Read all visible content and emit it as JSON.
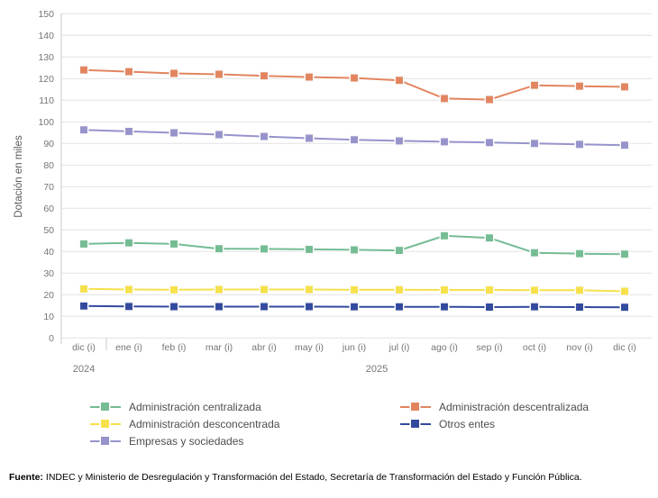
{
  "chart_data": {
    "type": "line",
    "categories": [
      "dic (i)",
      "ene (i)",
      "feb (i)",
      "mar (i)",
      "abr (i)",
      "may (i)",
      "jun (i)",
      "jul (i)",
      "ago (i)",
      "sep (i)",
      "oct (i)",
      "nov (i)",
      "dic (i)"
    ],
    "year_labels": [
      {
        "label": "2024",
        "at_index": 0
      },
      {
        "label": "2025",
        "at_index": 6.5
      }
    ],
    "series": [
      {
        "name": "Administración centralizada",
        "color": "#74BC93",
        "values": [
          43.5,
          44.0,
          43.5,
          41.3,
          41.2,
          41.0,
          40.8,
          40.5,
          47.3,
          46.3,
          39.4,
          39.0,
          38.8
        ]
      },
      {
        "name": "Administración descentralizada",
        "color": "#E2855F",
        "values": [
          124.0,
          123.2,
          122.4,
          122.0,
          121.3,
          120.7,
          120.3,
          119.2,
          110.8,
          110.3,
          116.9,
          116.5,
          116.2
        ]
      },
      {
        "name": "Administración desconcentrada",
        "color": "#F6E14B",
        "values": [
          22.7,
          22.4,
          22.3,
          22.4,
          22.4,
          22.4,
          22.3,
          22.3,
          22.2,
          22.2,
          22.1,
          22.1,
          21.6
        ]
      },
      {
        "name": "Empresas y sociedades",
        "color": "#9693CB",
        "values": [
          96.3,
          95.6,
          94.9,
          94.1,
          93.2,
          92.4,
          91.7,
          91.2,
          90.8,
          90.4,
          90.0,
          89.6,
          89.2
        ]
      },
      {
        "name": "Otros entes",
        "color": "#32499E",
        "values": [
          14.8,
          14.6,
          14.5,
          14.5,
          14.5,
          14.5,
          14.4,
          14.4,
          14.4,
          14.3,
          14.4,
          14.3,
          14.2
        ]
      }
    ],
    "title": "",
    "xlabel": "",
    "ylabel": "Dotación en miles",
    "ylim": [
      0,
      150
    ],
    "yticks": [
      0,
      10,
      20,
      30,
      40,
      50,
      60,
      70,
      80,
      90,
      100,
      110,
      120,
      130,
      140,
      150
    ],
    "grid": true,
    "legend_position": "bottom",
    "colors": {
      "gridline": "#E2E2E2",
      "axis_line": "#C9C9C9",
      "tick_label": "#767676"
    }
  },
  "legend": {
    "columns": [
      [
        "Administración centralizada",
        "Administración desconcentrada",
        "Empresas y sociedades"
      ],
      [
        "Administración descentralizada",
        "Otros entes"
      ]
    ]
  },
  "footer": {
    "source_label": "Fuente:",
    "source_text": "INDEC y Ministerio de Desregulación y Transformación del Estado, Secretaría de Transformación del Estado y Función Pública."
  }
}
